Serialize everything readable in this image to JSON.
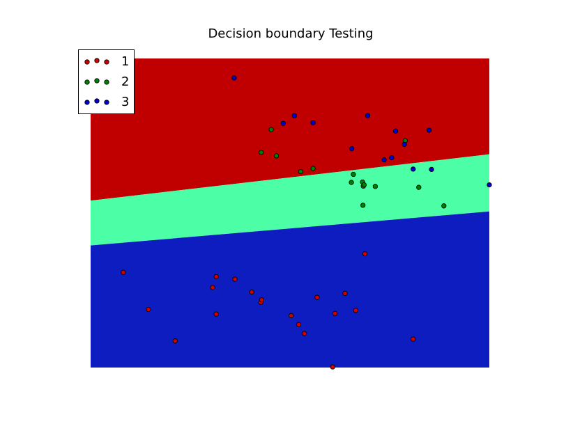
{
  "chart_data": {
    "type": "scatter",
    "title": "Decision boundary Testing",
    "xlabel": "",
    "ylabel": "",
    "axes_visible": false,
    "xlim": [
      0,
      100
    ],
    "ylim": [
      0,
      100
    ],
    "grid": false,
    "legend_placement": "top-left",
    "regions": [
      {
        "name": "region-red",
        "color": "#c00000",
        "left_top": 100,
        "left_bottom": 54,
        "right_top": 100,
        "right_bottom": 69
      },
      {
        "name": "region-green",
        "color": "#4cffa6",
        "left_top": 54,
        "left_bottom": 39.5,
        "right_top": 69,
        "right_bottom": 50.5
      },
      {
        "name": "region-blue",
        "color": "#0d1dbf",
        "left_top": 39.5,
        "left_bottom": 0,
        "right_top": 50.5,
        "right_bottom": 0
      }
    ],
    "series": [
      {
        "name": "1",
        "color": "#d40000",
        "points": [
          [
            8.2,
            30.8
          ],
          [
            14.5,
            18.8
          ],
          [
            21.2,
            8.6
          ],
          [
            31.5,
            29.4
          ],
          [
            30.6,
            25.9
          ],
          [
            31.5,
            17.3
          ],
          [
            36.2,
            28.6
          ],
          [
            40.4,
            24.4
          ],
          [
            42.7,
            21.1
          ],
          [
            42.9,
            21.9
          ],
          [
            50.3,
            16.8
          ],
          [
            52.2,
            13.9
          ],
          [
            53.6,
            11.0
          ],
          [
            56.8,
            22.7
          ],
          [
            61.3,
            17.5
          ],
          [
            63.8,
            24.0
          ],
          [
            66.5,
            18.5
          ],
          [
            68.8,
            36.8
          ],
          [
            80.9,
            9.2
          ],
          [
            60.7,
            0.2
          ]
        ]
      },
      {
        "name": "2",
        "color": "#008000",
        "points": [
          [
            45.3,
            77.0
          ],
          [
            42.8,
            69.6
          ],
          [
            46.6,
            68.5
          ],
          [
            52.7,
            63.4
          ],
          [
            55.8,
            64.4
          ],
          [
            65.4,
            59.9
          ],
          [
            65.9,
            62.5
          ],
          [
            68.4,
            58.7
          ],
          [
            68.2,
            60.0
          ],
          [
            68.6,
            59.1
          ],
          [
            71.4,
            58.6
          ],
          [
            78.9,
            73.4
          ],
          [
            82.3,
            58.3
          ],
          [
            88.6,
            52.3
          ],
          [
            68.3,
            52.5
          ]
        ]
      },
      {
        "name": "3",
        "color": "#0000d4",
        "points": [
          [
            36.0,
            93.7
          ],
          [
            48.3,
            79.0
          ],
          [
            51.1,
            81.5
          ],
          [
            55.8,
            79.2
          ],
          [
            69.5,
            81.5
          ],
          [
            65.5,
            70.8
          ],
          [
            73.6,
            67.2
          ],
          [
            75.5,
            67.9
          ],
          [
            76.5,
            76.5
          ],
          [
            78.7,
            72.2
          ],
          [
            84.9,
            76.8
          ],
          [
            80.9,
            64.2
          ],
          [
            85.5,
            64.1
          ],
          [
            100.0,
            59.1
          ]
        ]
      }
    ]
  }
}
